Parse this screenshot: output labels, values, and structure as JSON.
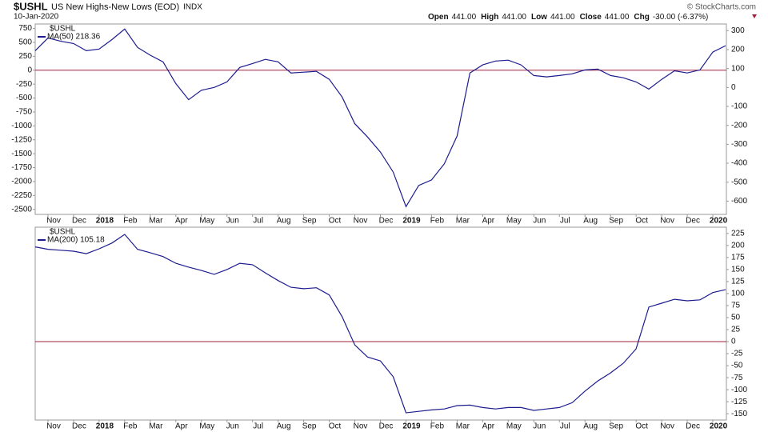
{
  "header": {
    "symbol": "$USHL",
    "name": "US New Highs-New Lows (EOD)",
    "exchange": "INDX",
    "date": "10-Jan-2020",
    "quote": [
      {
        "label": "Open",
        "value": "441.00"
      },
      {
        "label": "High",
        "value": "441.00"
      },
      {
        "label": "Low",
        "value": "441.00"
      },
      {
        "label": "Close",
        "value": "441.00"
      },
      {
        "label": "Chg",
        "value": "-30.00 (-6.37%)"
      }
    ],
    "credit": "© StockCharts.com"
  },
  "chart_data": [
    {
      "type": "line",
      "legend_symbol": "$USHL",
      "categories": [
        null,
        "Nov",
        null,
        "Dec",
        null,
        "2018",
        null,
        "Feb",
        null,
        "Mar",
        null,
        "Apr",
        null,
        "May",
        null,
        "Jun",
        null,
        "Jul",
        null,
        "Aug",
        null,
        "Sep",
        null,
        "Oct",
        null,
        "Nov",
        null,
        "Dec",
        null,
        "2019",
        null,
        "Feb",
        null,
        "Mar",
        null,
        "Apr",
        null,
        "May",
        null,
        "Jun",
        null,
        "Jul",
        null,
        "Aug",
        null,
        "Sep",
        null,
        "Oct",
        null,
        "Nov",
        null,
        "Dec",
        null,
        "2020",
        null
      ],
      "series": [
        {
          "name": "MA(50) 218.36",
          "color": "#1c1c8f",
          "values": [
            350,
            580,
            520,
            480,
            350,
            380,
            550,
            740,
            410,
            270,
            150,
            -240,
            -530,
            -360,
            -310,
            -210,
            50,
            120,
            195,
            150,
            -50,
            -35,
            -20,
            -165,
            -480,
            -960,
            -1200,
            -1470,
            -1830,
            -2450,
            -2070,
            -1970,
            -1680,
            -1180,
            -50,
            95,
            165,
            180,
            95,
            -95,
            -120,
            -95,
            -65,
            5,
            20,
            -95,
            -135,
            -210,
            -340,
            -165,
            -10,
            -50,
            5,
            325,
            440
          ]
        }
      ],
      "ylim": [
        -2590,
        830
      ],
      "yticks": [
        750,
        500,
        250,
        0,
        -250,
        -500,
        -750,
        -1000,
        -1250,
        -1500,
        -1750,
        -2000,
        -2250,
        -2500
      ],
      "y2lim": [
        -670,
        335
      ],
      "y2ticks": [
        300,
        200,
        100,
        0,
        -100,
        -200,
        -300,
        -400,
        -500,
        -600
      ],
      "hline": 0,
      "hline_color": "#a0203c",
      "grid": false
    },
    {
      "type": "line",
      "legend_symbol": "$USHL",
      "categories": [
        null,
        "Nov",
        null,
        "Dec",
        null,
        "2018",
        null,
        "Feb",
        null,
        "Mar",
        null,
        "Apr",
        null,
        "May",
        null,
        "Jun",
        null,
        "Jul",
        null,
        "Aug",
        null,
        "Sep",
        null,
        "Oct",
        null,
        "Nov",
        null,
        "Dec",
        null,
        "2019",
        null,
        "Feb",
        null,
        "Mar",
        null,
        "Apr",
        null,
        "May",
        null,
        "Jun",
        null,
        "Jul",
        null,
        "Aug",
        null,
        "Sep",
        null,
        "Oct",
        null,
        "Nov",
        null,
        "Dec",
        null,
        "2020",
        null
      ],
      "series": [
        {
          "name": "MA(200) 105.18",
          "color": "#1c1c8f",
          "values": [
            197,
            192,
            190,
            188,
            183,
            193,
            205,
            223,
            192,
            185,
            177,
            163,
            155,
            148,
            140,
            150,
            163,
            160,
            143,
            127,
            113,
            110,
            112,
            97,
            52,
            -7,
            -32,
            -40,
            -73,
            -148,
            -145,
            -142,
            -140,
            -133,
            -132,
            -137,
            -140,
            -137,
            -137,
            -143,
            -140,
            -137,
            -127,
            -103,
            -82,
            -65,
            -45,
            -15,
            72,
            80,
            88,
            85,
            87,
            102,
            108
          ]
        }
      ],
      "ylim": [
        -163,
        238
      ],
      "yaxis_position": "right",
      "yticks": [
        225,
        200,
        175,
        150,
        125,
        100,
        75,
        50,
        25,
        0,
        -25,
        -50,
        -75,
        -100,
        -125,
        -150
      ],
      "hline": 0,
      "hline_color": "#a0203c",
      "grid": false
    }
  ]
}
